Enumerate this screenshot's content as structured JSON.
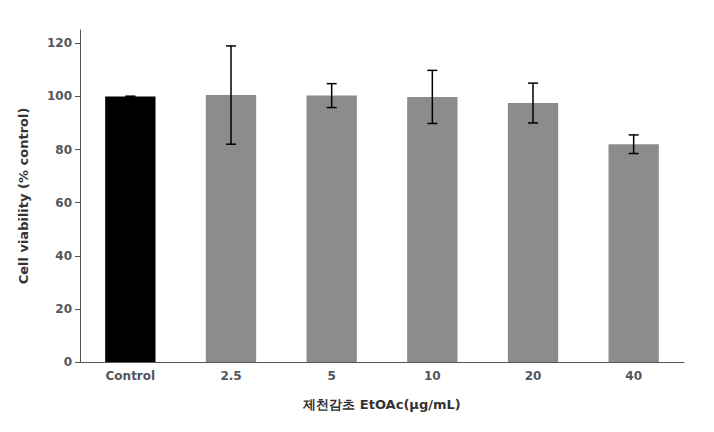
{
  "chart_data": {
    "type": "bar",
    "categories": [
      "Control",
      "2.5",
      "5",
      "10",
      "20",
      "40"
    ],
    "values": [
      100.0,
      100.5,
      100.3,
      99.8,
      97.5,
      82.0
    ],
    "errors": [
      0.0,
      18.5,
      4.5,
      10.0,
      7.5,
      3.5
    ],
    "colors": [
      "#000000",
      "#8c8c8c",
      "#8c8c8c",
      "#8c8c8c",
      "#8c8c8c",
      "#8c8c8c"
    ],
    "xlabel": "제천감초 EtOAc(μg/mL)",
    "ylabel": "Cell viability (% control)",
    "ylim": [
      0,
      125
    ],
    "yticks": [
      0,
      20,
      40,
      60,
      80,
      100,
      120
    ],
    "grid": false
  }
}
